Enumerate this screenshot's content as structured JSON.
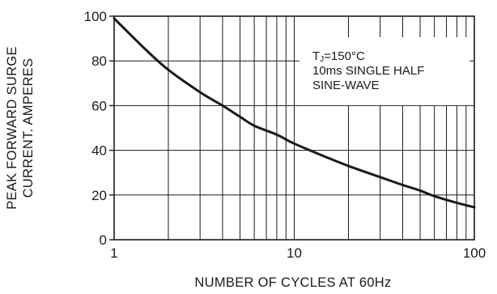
{
  "chart_data": {
    "type": "line",
    "title": "",
    "xlabel": "NUMBER OF CYCLES AT 60Hz",
    "ylabel_lines": [
      "PEAK FORWARD SURGE",
      "CURRENT. AMPERES"
    ],
    "x_scale": "log",
    "xlim": [
      1,
      100
    ],
    "ylim": [
      0,
      100
    ],
    "x_ticks": [
      1,
      10,
      100
    ],
    "x_tick_labels": [
      "1",
      "10",
      "100"
    ],
    "y_ticks": [
      0,
      20,
      40,
      60,
      80,
      100
    ],
    "y_tick_labels": [
      "0",
      "20",
      "40",
      "60",
      "80",
      "100"
    ],
    "grid": true,
    "series": [
      {
        "x": [
          1,
          1.5,
          2,
          3,
          4,
          5,
          6,
          8,
          10,
          15,
          20,
          30,
          40,
          50,
          60,
          80,
          100
        ],
        "y": [
          99,
          85,
          76,
          66,
          60,
          55,
          51,
          47,
          43,
          37,
          33,
          28,
          24.5,
          22,
          19.5,
          16.5,
          14.5
        ]
      }
    ],
    "annotation": {
      "line1_main": "T",
      "line1_sub": "J",
      "line1_rest": "=150°C",
      "line2": "10ms SINGLE HALF",
      "line3": "SINE-WAVE"
    }
  }
}
